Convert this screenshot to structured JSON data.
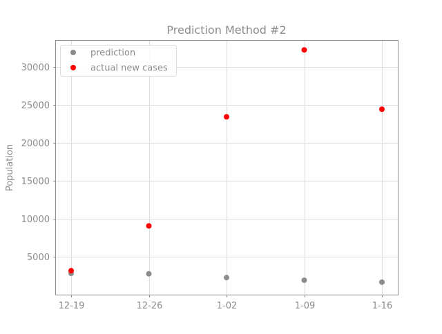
{
  "chart_data": {
    "type": "scatter",
    "title": "Prediction Method #2",
    "xlabel": "",
    "ylabel": "Population",
    "categories": [
      "12-19",
      "12-26",
      "1-02",
      "1-09",
      "1-16"
    ],
    "series": [
      {
        "name": "prediction",
        "color": "#8c8c8c",
        "values": [
          2800,
          2750,
          2250,
          1900,
          1650
        ]
      },
      {
        "name": "actual new cases",
        "color": "#ff0000",
        "values": [
          3150,
          9050,
          23400,
          32200,
          24400
        ]
      }
    ],
    "ylim": [
      0,
      33500
    ],
    "yticks": [
      5000,
      10000,
      15000,
      20000,
      25000,
      30000
    ],
    "grid": true,
    "legend_position": "upper-left"
  }
}
